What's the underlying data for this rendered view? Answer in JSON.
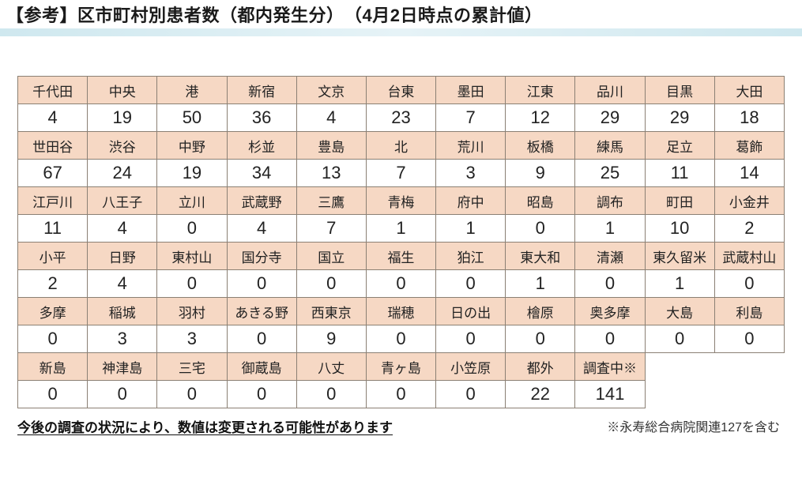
{
  "title": "【参考】区市町村別患者数（都内発生分）　（4月2日時点の累計値）",
  "table": {
    "columns": 11,
    "header_bg": "#f6d8c4",
    "value_bg": "#ffffff",
    "border_color": "#8b8074",
    "header_fontsize": 17,
    "value_fontsize": 22,
    "rows": [
      {
        "type": "hdr",
        "cells": [
          "千代田",
          "中央",
          "港",
          "新宿",
          "文京",
          "台東",
          "墨田",
          "江東",
          "品川",
          "目黒",
          "大田"
        ]
      },
      {
        "type": "val",
        "cells": [
          "4",
          "19",
          "50",
          "36",
          "4",
          "23",
          "7",
          "12",
          "29",
          "29",
          "18"
        ]
      },
      {
        "type": "hdr",
        "cells": [
          "世田谷",
          "渋谷",
          "中野",
          "杉並",
          "豊島",
          "北",
          "荒川",
          "板橋",
          "練馬",
          "足立",
          "葛飾"
        ]
      },
      {
        "type": "val",
        "cells": [
          "67",
          "24",
          "19",
          "34",
          "13",
          "7",
          "3",
          "9",
          "25",
          "11",
          "14"
        ]
      },
      {
        "type": "hdr",
        "cells": [
          "江戸川",
          "八王子",
          "立川",
          "武蔵野",
          "三鷹",
          "青梅",
          "府中",
          "昭島",
          "調布",
          "町田",
          "小金井"
        ]
      },
      {
        "type": "val",
        "cells": [
          "11",
          "4",
          "0",
          "4",
          "7",
          "1",
          "1",
          "0",
          "1",
          "10",
          "2"
        ]
      },
      {
        "type": "hdr",
        "cells": [
          "小平",
          "日野",
          "東村山",
          "国分寺",
          "国立",
          "福生",
          "狛江",
          "東大和",
          "清瀬",
          "東久留米",
          "武蔵村山"
        ]
      },
      {
        "type": "val",
        "cells": [
          "2",
          "4",
          "0",
          "0",
          "0",
          "0",
          "0",
          "1",
          "0",
          "1",
          "0"
        ]
      },
      {
        "type": "hdr",
        "cells": [
          "多摩",
          "稲城",
          "羽村",
          "あきる野",
          "西東京",
          "瑞穂",
          "日の出",
          "檜原",
          "奥多摩",
          "大島",
          "利島"
        ]
      },
      {
        "type": "val",
        "cells": [
          "0",
          "3",
          "3",
          "0",
          "9",
          "0",
          "0",
          "0",
          "0",
          "0",
          "0"
        ]
      },
      {
        "type": "hdr",
        "cells": [
          "新島",
          "神津島",
          "三宅",
          "御蔵島",
          "八丈",
          "青ヶ島",
          "小笠原",
          "都外",
          "調査中※",
          "",
          ""
        ],
        "last_empty": 2
      },
      {
        "type": "val",
        "cells": [
          "0",
          "0",
          "0",
          "0",
          "0",
          "0",
          "0",
          "22",
          "141",
          "",
          ""
        ],
        "last_empty": 2
      }
    ]
  },
  "footer_left": "今後の調査の状況により、数値は変更される可能性があります",
  "footer_right": "※永寿総合病院関連127を含む"
}
